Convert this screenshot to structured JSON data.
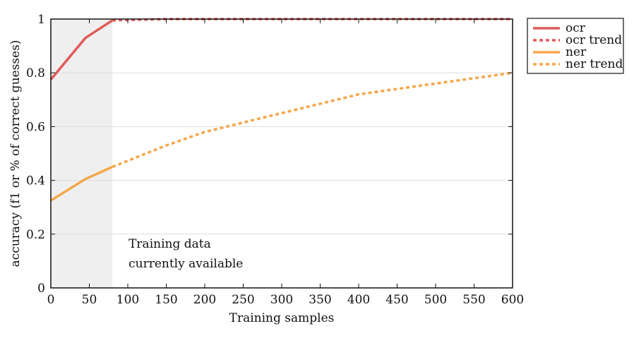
{
  "chart_data": {
    "type": "line",
    "xlabel": "Training samples",
    "ylabel": "accuracy (f1 or % of correct guesses)",
    "xlim": [
      0,
      600
    ],
    "ylim": [
      0,
      1
    ],
    "xticks": [
      0,
      50,
      100,
      150,
      200,
      250,
      300,
      350,
      400,
      450,
      500,
      550,
      600
    ],
    "yticks": [
      0,
      0.2,
      0.4,
      0.6,
      0.8,
      1
    ],
    "ytick_labels": [
      "0",
      "0.2",
      "0.4",
      "0.6",
      "0.8",
      "1"
    ],
    "grid": "horizontal",
    "legend_position": "outside-right-top",
    "shaded_region": {
      "x": [
        0,
        80
      ],
      "color": "#efefef"
    },
    "annotation": {
      "lines": [
        "Training data",
        "currently available"
      ],
      "x": 90,
      "y": 0.15
    },
    "series": [
      {
        "name": "ocr",
        "style": "solid",
        "color": "#e05a5a",
        "x": [
          0,
          45,
          80
        ],
        "y": [
          0.775,
          0.93,
          0.995
        ]
      },
      {
        "name": "ocr trend",
        "style": "dotted",
        "color": "#e05a5a",
        "x": [
          80,
          150,
          300,
          450,
          600
        ],
        "y": [
          0.995,
          1.0,
          1.0,
          1.0,
          1.0
        ]
      },
      {
        "name": "ner",
        "style": "solid",
        "color": "#f5a74a",
        "x": [
          0,
          45,
          80
        ],
        "y": [
          0.325,
          0.405,
          0.45
        ]
      },
      {
        "name": "ner trend",
        "style": "dotted",
        "color": "#f5a74a",
        "x": [
          80,
          150,
          200,
          300,
          400,
          500,
          600
        ],
        "y": [
          0.45,
          0.53,
          0.58,
          0.65,
          0.72,
          0.76,
          0.8
        ]
      }
    ]
  }
}
